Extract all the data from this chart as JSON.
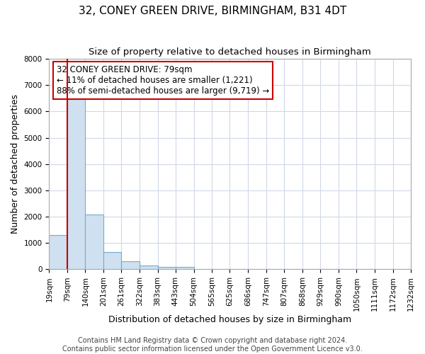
{
  "title": "32, CONEY GREEN DRIVE, BIRMINGHAM, B31 4DT",
  "subtitle": "Size of property relative to detached houses in Birmingham",
  "xlabel": "Distribution of detached houses by size in Birmingham",
  "ylabel": "Number of detached properties",
  "bin_edges": [
    19,
    79,
    140,
    201,
    261,
    322,
    383,
    443,
    504,
    565,
    625,
    686,
    747,
    807,
    868,
    929,
    990,
    1050,
    1111,
    1172,
    1232
  ],
  "bin_labels": [
    "19sqm",
    "79sqm",
    "140sqm",
    "201sqm",
    "261sqm",
    "322sqm",
    "383sqm",
    "443sqm",
    "504sqm",
    "565sqm",
    "625sqm",
    "686sqm",
    "747sqm",
    "807sqm",
    "868sqm",
    "929sqm",
    "990sqm",
    "1050sqm",
    "1111sqm",
    "1172sqm",
    "1232sqm"
  ],
  "counts": [
    1300,
    6600,
    2080,
    650,
    310,
    150,
    100,
    100,
    0,
    0,
    0,
    0,
    0,
    0,
    0,
    0,
    0,
    0,
    0,
    0
  ],
  "bar_color": "#cfe0f0",
  "bar_edge_color": "#7aaac8",
  "red_line_x": 79,
  "annotation_text": "32 CONEY GREEN DRIVE: 79sqm\n← 11% of detached houses are smaller (1,221)\n88% of semi-detached houses are larger (9,719) →",
  "annotation_box_edge": "#cc0000",
  "annotation_box_face": "#ffffff",
  "ylim": [
    0,
    8000
  ],
  "yticks": [
    0,
    1000,
    2000,
    3000,
    4000,
    5000,
    6000,
    7000,
    8000
  ],
  "footer_line1": "Contains HM Land Registry data © Crown copyright and database right 2024.",
  "footer_line2": "Contains public sector information licensed under the Open Government Licence v3.0.",
  "bg_color": "#ffffff",
  "plot_bg_color": "#ffffff",
  "grid_color": "#d0d8e8",
  "title_fontsize": 11,
  "subtitle_fontsize": 9.5,
  "axis_label_fontsize": 9,
  "tick_fontsize": 7.5,
  "annotation_fontsize": 8.5,
  "footer_fontsize": 7
}
